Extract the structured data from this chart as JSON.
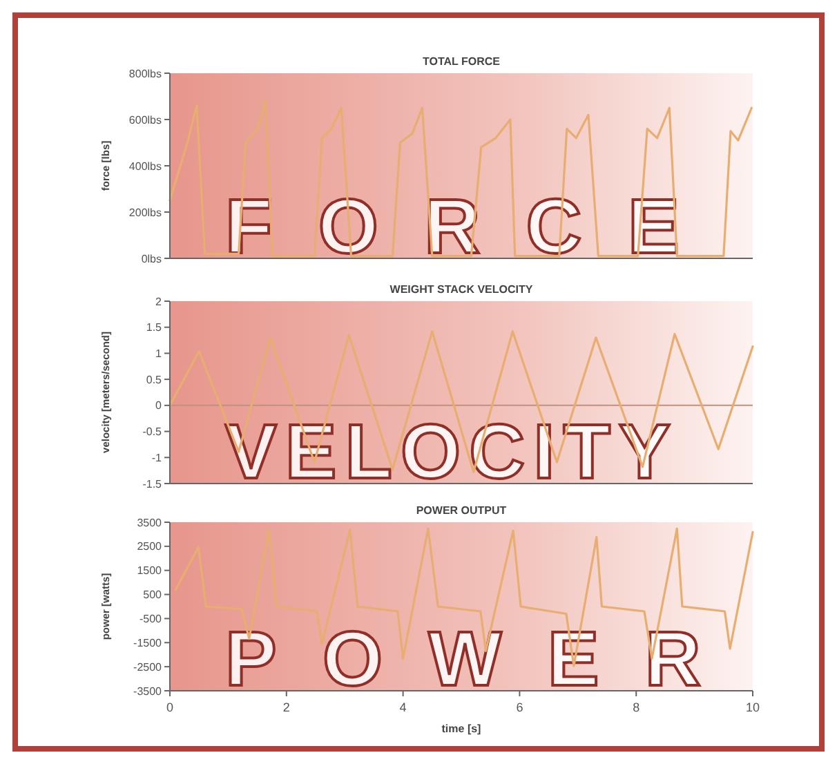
{
  "chart_data": [
    {
      "type": "line",
      "title": "TOTAL FORCE",
      "ylabel": "force [lbs]",
      "annotations": [
        "FORCE"
      ],
      "tick_labels": "y",
      "grid": false,
      "xlim": [
        0,
        10
      ],
      "ylim": [
        0,
        800
      ],
      "yticks": [
        {
          "value": 0,
          "label": "0lbs"
        },
        {
          "value": 200,
          "label": "200lbs"
        },
        {
          "value": 400,
          "label": "400lbs"
        },
        {
          "value": 600,
          "label": "600lbs"
        },
        {
          "value": 800,
          "label": "800lbs"
        }
      ],
      "series": [
        {
          "color": "#e8ad70",
          "x": [
            0,
            0.3,
            0.46,
            0.6,
            1.18,
            1.3,
            1.51,
            1.64,
            1.76,
            2.48,
            2.61,
            2.77,
            2.94,
            3.11,
            3.82,
            3.95,
            4.16,
            4.33,
            4.5,
            5.17,
            5.34,
            5.59,
            5.84,
            5.92,
            6.68,
            6.81,
            6.97,
            7.18,
            7.35,
            8.03,
            8.19,
            8.36,
            8.57,
            8.7,
            9.5,
            9.62,
            9.75,
            9.98
          ],
          "values": [
            250,
            500,
            660,
            20,
            20,
            500,
            560,
            680,
            10,
            10,
            520,
            560,
            650,
            10,
            10,
            500,
            540,
            650,
            10,
            10,
            480,
            520,
            600,
            10,
            10,
            560,
            520,
            620,
            10,
            10,
            560,
            520,
            650,
            10,
            10,
            550,
            510,
            650
          ]
        }
      ]
    },
    {
      "type": "line",
      "title": "WEIGHT STACK VELOCITY",
      "ylabel": "velocity [meters/second]",
      "annotations": [
        "VELOCITY"
      ],
      "tick_labels": "y",
      "grid": false,
      "xlim": [
        0,
        10
      ],
      "ylim": [
        -1.5,
        2
      ],
      "yticks": [
        -1.5,
        -1,
        -0.5,
        0,
        0.5,
        1,
        1.5,
        2
      ],
      "ref_lines": [
        {
          "axis": "y",
          "value": 0,
          "color": "#c09080"
        }
      ],
      "series": [
        {
          "color": "#e8ad70",
          "x": [
            0,
            0.5,
            1.18,
            1.72,
            2.48,
            3.07,
            3.82,
            4.5,
            5.21,
            5.88,
            6.64,
            7.31,
            8.11,
            8.66,
            9.41,
            10
          ],
          "values": [
            0,
            1.04,
            -0.89,
            1.3,
            -1.09,
            1.35,
            -1.23,
            1.42,
            -1.28,
            1.42,
            -1.09,
            1.3,
            -1.18,
            1.37,
            -0.84,
            1.13
          ]
        }
      ]
    },
    {
      "type": "line",
      "title": "POWER OUTPUT",
      "xlabel": "time [s]",
      "ylabel": "power [watts]",
      "annotations": [
        "POWER"
      ],
      "grid": false,
      "xlim": [
        0,
        10
      ],
      "xticks": [
        0,
        2,
        4,
        6,
        8,
        10
      ],
      "ylim": [
        -3500,
        3500
      ],
      "yticks": [
        -3500,
        -2500,
        -1500,
        -500,
        500,
        1500,
        2500,
        3500
      ],
      "series": [
        {
          "color": "#e8ad70",
          "x": [
            0.1,
            0.49,
            0.62,
            1.23,
            1.36,
            1.7,
            1.83,
            2.52,
            2.61,
            3.09,
            3.22,
            3.91,
            4.0,
            4.43,
            4.6,
            5.33,
            5.42,
            5.89,
            6.02,
            6.8,
            6.93,
            7.32,
            7.41,
            8.14,
            8.27,
            8.7,
            8.79,
            9.52,
            9.61,
            10
          ],
          "values": [
            700,
            2470,
            0,
            -100,
            -1340,
            3190,
            0,
            -200,
            -1540,
            3190,
            0,
            -200,
            -2160,
            3230,
            0,
            -200,
            -1850,
            3150,
            0,
            -300,
            -2470,
            2880,
            0,
            -200,
            -2160,
            3230,
            0,
            -200,
            -1750,
            3090
          ]
        }
      ]
    }
  ]
}
